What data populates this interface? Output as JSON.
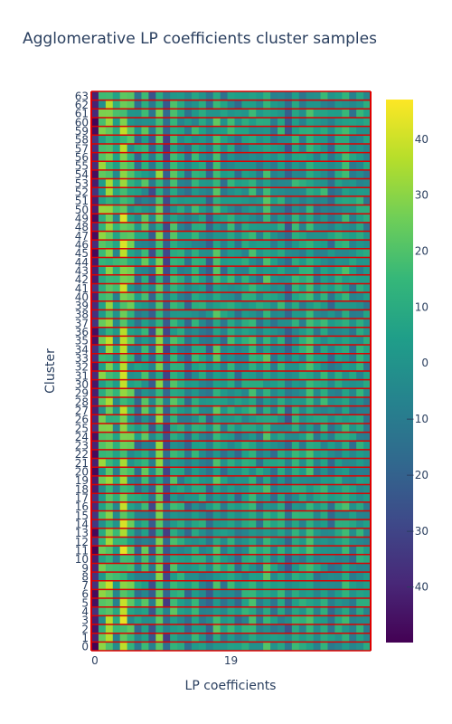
{
  "chart_data": {
    "type": "heatmap",
    "title": "Agglomerative LP coefficients cluster samples",
    "xlabel": "LP coefficients",
    "ylabel": "Cluster",
    "x_tick_labels": [
      "0",
      "19"
    ],
    "x_tick_values": [
      0,
      19
    ],
    "n_columns": 39,
    "y_categories": [
      0,
      1,
      2,
      3,
      4,
      5,
      6,
      7,
      8,
      9,
      10,
      11,
      12,
      13,
      14,
      15,
      16,
      17,
      18,
      19,
      20,
      21,
      22,
      23,
      24,
      25,
      26,
      27,
      28,
      29,
      30,
      31,
      32,
      33,
      34,
      35,
      36,
      37,
      38,
      39,
      40,
      41,
      42,
      43,
      44,
      45,
      46,
      47,
      48,
      49,
      50,
      51,
      52,
      53,
      54,
      55,
      56,
      57,
      58,
      59,
      60,
      61,
      62,
      63
    ],
    "colorscale": "Viridis",
    "zmin": -50,
    "zmax": 47,
    "colorbar_ticks": [
      40,
      30,
      20,
      10,
      0,
      -10,
      -20,
      -30,
      -40
    ],
    "cluster_separator_color": "#dd0000",
    "column_profile": [
      -42,
      15,
      25,
      5,
      30,
      12,
      -5,
      8,
      -15,
      20,
      -20,
      10,
      2,
      -8,
      5,
      0,
      -10,
      12,
      -4,
      6,
      -6,
      3,
      8,
      -2,
      10,
      -5,
      4,
      -12,
      6,
      0,
      8,
      -3,
      5,
      -6,
      2,
      7,
      -4,
      3,
      -1
    ],
    "column_spread": [
      8,
      18,
      14,
      14,
      16,
      16,
      14,
      16,
      14,
      12,
      14,
      12,
      12,
      12,
      12,
      12,
      12,
      12,
      12,
      12,
      12,
      12,
      12,
      12,
      12,
      12,
      12,
      12,
      12,
      12,
      12,
      12,
      12,
      12,
      12,
      12,
      12,
      12,
      12
    ]
  }
}
